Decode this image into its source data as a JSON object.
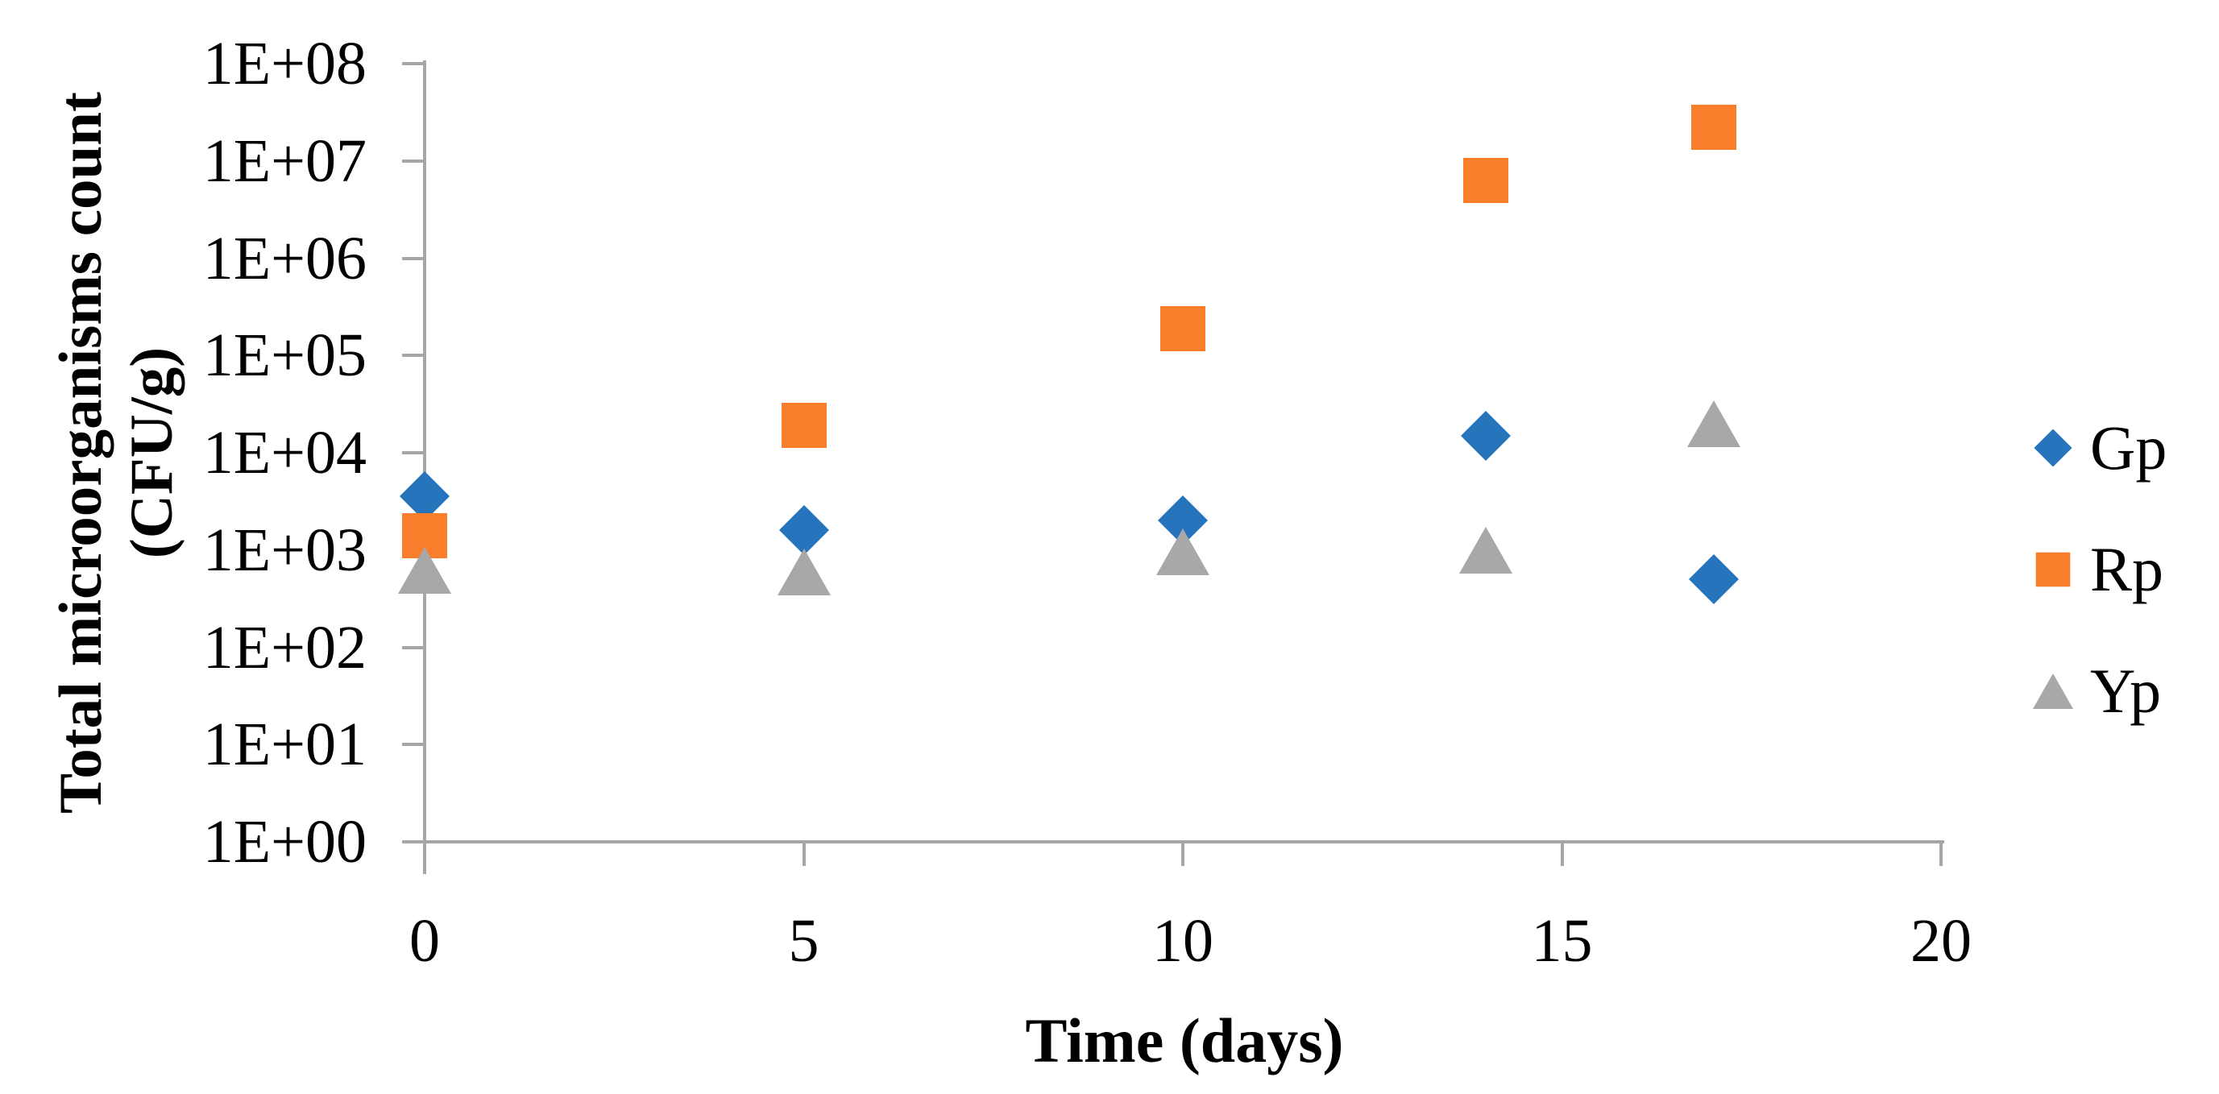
{
  "chart_data": {
    "type": "scatter",
    "title": "",
    "xlabel": "Time (days)",
    "ylabel": "Total microorganisms count (CFU/g)",
    "ylabel_line1": "Total microorganisms count",
    "ylabel_line2": "(CFU/g)",
    "y_scale": "log10",
    "ylim": [
      1,
      100000000
    ],
    "xlim": [
      0,
      20
    ],
    "x_tick_labels": [
      "0",
      "5",
      "10",
      "15",
      "20"
    ],
    "x_tick_values": [
      0,
      5,
      10,
      15,
      20
    ],
    "y_tick_labels": [
      "1E+00",
      "1E+01",
      "1E+02",
      "1E+03",
      "1E+04",
      "1E+05",
      "1E+06",
      "1E+07",
      "1E+08"
    ],
    "grid": false,
    "legend_position": "right",
    "x": [
      0,
      5,
      10,
      14,
      17
    ],
    "series": [
      {
        "name": "Gp",
        "marker": "diamond",
        "color": "#2574BC",
        "values": [
          3600,
          1600,
          2000,
          15000,
          500
        ],
        "values_sci": [
          "3.6E+03",
          "1.6E+03",
          "2.0E+03",
          "1.5E+04",
          "5.0E+02"
        ]
      },
      {
        "name": "Rp",
        "marker": "square",
        "color": "#F87E2B",
        "values": [
          1400,
          19000,
          190000,
          6300000,
          22000000
        ],
        "values_sci": [
          "1.4E+03",
          "1.9E+04",
          "1.9E+05",
          "6.3E+06",
          "2.2E+07"
        ]
      },
      {
        "name": "Yp",
        "marker": "triangle",
        "color": "#A8A8A8",
        "values": [
          620,
          590,
          950,
          1000,
          20000
        ],
        "values_sci": [
          "6.2E+02",
          "5.9E+02",
          "9.5E+02",
          "1.0E+03",
          "2.0E+04"
        ]
      }
    ]
  },
  "axes": {
    "x_title": "Time (days)",
    "y_title_line1": "Total microorganisms count",
    "y_title_line2": "(CFU/g)"
  },
  "legend": {
    "items": [
      {
        "label": "Gp",
        "marker": "diamond"
      },
      {
        "label": "Rp",
        "marker": "square"
      },
      {
        "label": "Yp",
        "marker": "triangle"
      }
    ]
  },
  "colors": {
    "gp_blue": "#2574BC",
    "rp_orange": "#F87E2B",
    "yp_gray": "#A8A8A8",
    "axis_gray": "#A6A6A6",
    "text": "#000000"
  }
}
